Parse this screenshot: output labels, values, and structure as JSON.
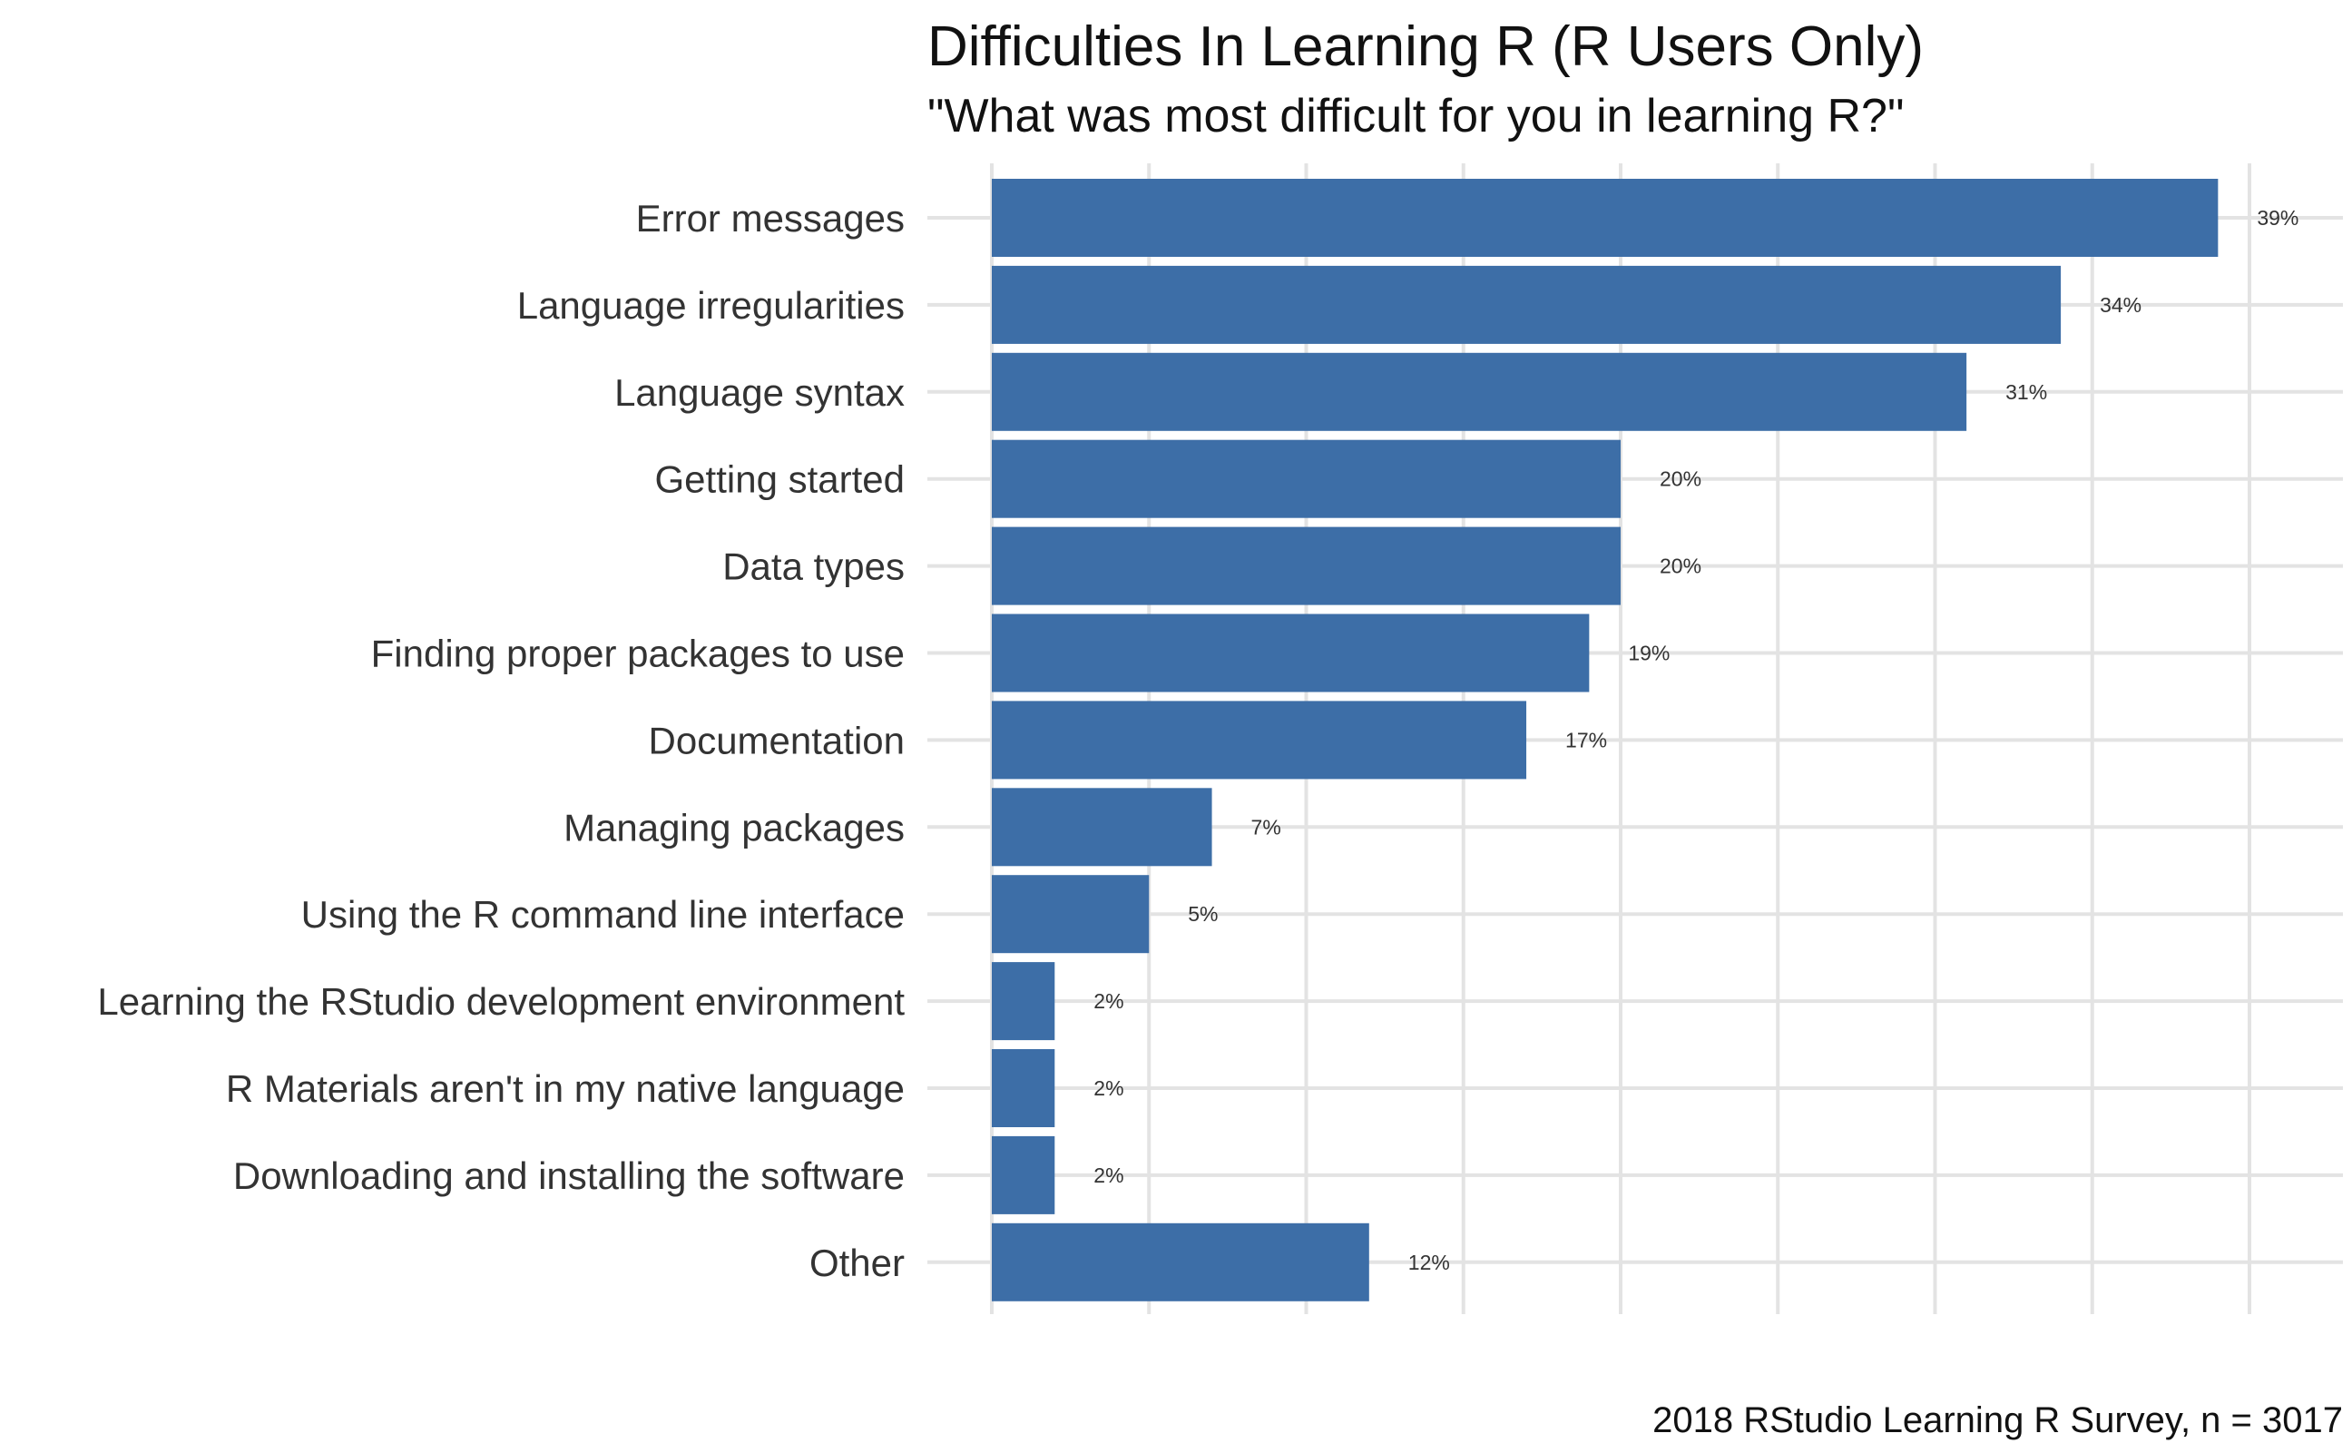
{
  "chart_data": {
    "type": "bar",
    "orientation": "horizontal",
    "title": "Difficulties In Learning R  (R Users Only)",
    "subtitle": "\"What was most difficult for you in learning R?\"",
    "caption": "2018 RStudio Learning R Survey, n = 3017",
    "categories": [
      "Error messages",
      "Language irregularities",
      "Language syntax",
      "Getting started",
      "Data types",
      "Finding proper packages to use",
      "Documentation",
      "Managing packages",
      "Using the R command line interface",
      "Learning the RStudio development environment",
      "R Materials aren't in my native language",
      "Downloading and installing the software",
      "Other"
    ],
    "values": [
      39,
      34,
      31,
      20,
      20,
      19,
      17,
      7,
      5,
      2,
      2,
      2,
      12
    ],
    "data_labels": [
      "39%",
      "34%",
      "31%",
      "20%",
      "20%",
      "19%",
      "17%",
      "7%",
      "5%",
      "2%",
      "2%",
      "2%",
      "12%"
    ],
    "xlim": [
      0,
      40
    ],
    "grid": true,
    "bar_color": "#3d6ea7"
  }
}
